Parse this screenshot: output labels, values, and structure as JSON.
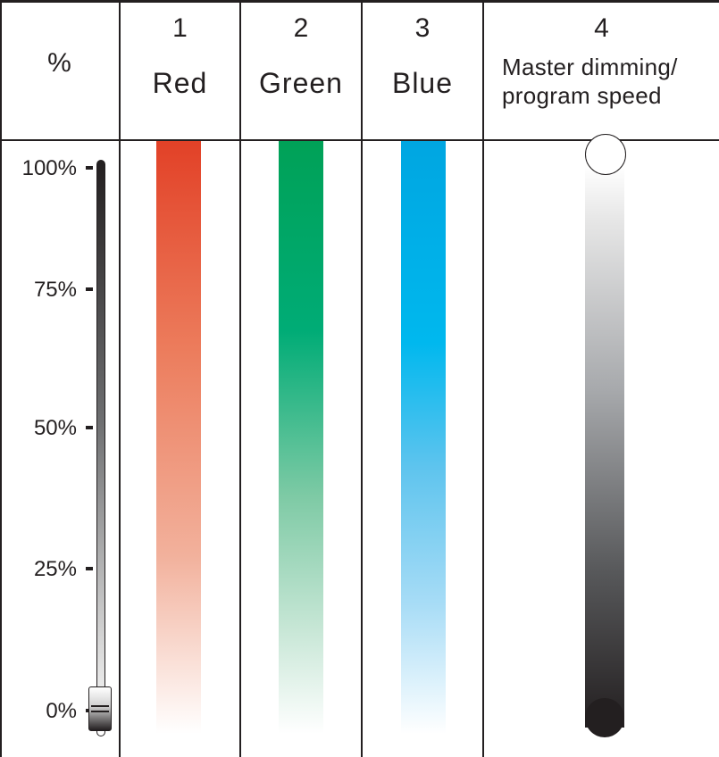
{
  "header": {
    "percent_label": "%",
    "channels": [
      {
        "number": "1",
        "name": "Red"
      },
      {
        "number": "2",
        "name": "Green"
      },
      {
        "number": "3",
        "name": "Blue"
      },
      {
        "number": "4",
        "name_line1": "Master dimming/",
        "name_line2": "program speed"
      }
    ]
  },
  "scale": {
    "ticks": [
      "100%",
      "75%",
      "50%",
      "25%",
      "0%"
    ]
  },
  "slider": {
    "level_percent": 0
  },
  "colors": {
    "red": "#e24127",
    "green": "#00a157",
    "blue": "#00a6e1",
    "master_dark": "#231f20",
    "line": "#231f20"
  },
  "icons": {
    "slider": "fader-slider-icon",
    "master_top": "open-circle-icon",
    "master_bottom": "filled-circle-icon"
  }
}
